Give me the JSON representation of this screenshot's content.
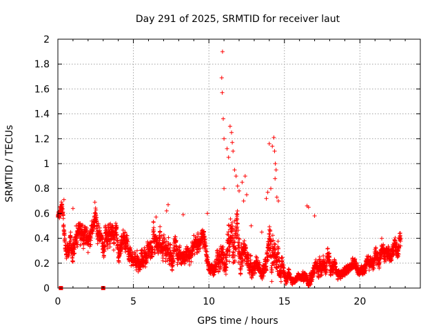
{
  "chart_data": {
    "type": "scatter",
    "title": "Day 291 of 2025, SRMTID for receiver laut",
    "xlabel": "GPS time / hours",
    "ylabel": "SRMTID / TECUs",
    "xlim": [
      0,
      24
    ],
    "ylim": [
      0,
      2
    ],
    "xticks": [
      0,
      5,
      10,
      15,
      20
    ],
    "xtick_labels": [
      "0",
      "5",
      "10",
      "15",
      "20"
    ],
    "yticks": [
      0,
      0.2,
      0.4,
      0.6,
      0.8,
      1,
      1.2,
      1.4,
      1.6,
      1.8,
      2
    ],
    "ytick_labels": [
      "0",
      "0.2",
      "0.4",
      "0.6",
      "0.8",
      "1",
      "1.2",
      "1.4",
      "1.6",
      "1.8",
      "2"
    ],
    "grid": true,
    "marker_color": "#ff0000",
    "series": [
      {
        "name": "SRMTID",
        "marker": "plus",
        "trend": {
          "x": [
            0.0,
            0.3,
            0.5,
            1.0,
            1.5,
            2.0,
            2.2,
            2.5,
            3.0,
            3.5,
            4.0,
            4.5,
            5.0,
            5.5,
            6.0,
            6.5,
            7.0,
            7.5,
            8.0,
            8.5,
            9.0,
            9.5,
            9.8,
            10.0,
            10.5,
            11.0,
            11.5,
            12.0,
            12.5,
            13.0,
            13.5,
            14.0,
            14.5,
            15.0,
            15.5,
            16.0,
            16.5,
            17.0,
            17.5,
            18.0,
            18.5,
            19.0,
            19.5,
            20.0,
            20.5,
            21.0,
            21.5,
            22.0,
            22.5,
            22.7
          ],
          "center": [
            0.58,
            0.62,
            0.38,
            0.35,
            0.4,
            0.33,
            0.42,
            0.55,
            0.3,
            0.45,
            0.32,
            0.38,
            0.22,
            0.24,
            0.3,
            0.38,
            0.36,
            0.32,
            0.28,
            0.26,
            0.3,
            0.45,
            0.3,
            0.14,
            0.2,
            0.26,
            0.4,
            0.32,
            0.22,
            0.18,
            0.14,
            0.3,
            0.28,
            0.12,
            0.07,
            0.08,
            0.1,
            0.14,
            0.22,
            0.18,
            0.12,
            0.12,
            0.18,
            0.14,
            0.16,
            0.26,
            0.3,
            0.26,
            0.34,
            0.38
          ],
          "spread": [
            0.04,
            0.06,
            0.08,
            0.12,
            0.14,
            0.12,
            0.1,
            0.1,
            0.1,
            0.12,
            0.1,
            0.1,
            0.08,
            0.09,
            0.11,
            0.12,
            0.12,
            0.1,
            0.1,
            0.1,
            0.1,
            0.1,
            0.1,
            0.06,
            0.08,
            0.15,
            0.2,
            0.18,
            0.1,
            0.08,
            0.06,
            0.2,
            0.18,
            0.06,
            0.04,
            0.04,
            0.06,
            0.08,
            0.1,
            0.08,
            0.05,
            0.05,
            0.07,
            0.06,
            0.06,
            0.08,
            0.09,
            0.08,
            0.09,
            0.1
          ]
        },
        "points_per_hour": 150,
        "outliers": [
          [
            10.9,
            1.9
          ],
          [
            10.85,
            1.69
          ],
          [
            10.88,
            1.57
          ],
          [
            10.95,
            1.36
          ],
          [
            11.0,
            1.2
          ],
          [
            11.2,
            1.12
          ],
          [
            11.3,
            1.05
          ],
          [
            11.4,
            1.3
          ],
          [
            11.5,
            1.25
          ],
          [
            11.55,
            1.17
          ],
          [
            11.6,
            1.1
          ],
          [
            11.7,
            0.95
          ],
          [
            11.8,
            0.9
          ],
          [
            11.9,
            0.82
          ],
          [
            12.0,
            0.78
          ],
          [
            11.0,
            0.8
          ],
          [
            12.2,
            0.85
          ],
          [
            12.4,
            0.9
          ],
          [
            12.5,
            0.75
          ],
          [
            12.3,
            0.7
          ],
          [
            14.0,
            1.16
          ],
          [
            14.2,
            1.14
          ],
          [
            14.3,
            1.21
          ],
          [
            14.35,
            1.1
          ],
          [
            14.4,
            1.0
          ],
          [
            14.45,
            0.95
          ],
          [
            14.38,
            0.88
          ],
          [
            13.9,
            0.77
          ],
          [
            14.1,
            0.8
          ],
          [
            14.5,
            0.73
          ],
          [
            13.8,
            0.72
          ],
          [
            14.6,
            0.7
          ],
          [
            16.5,
            0.66
          ],
          [
            16.6,
            0.65
          ],
          [
            17.0,
            0.58
          ],
          [
            8.3,
            0.59
          ],
          [
            7.3,
            0.67
          ],
          [
            7.2,
            0.62
          ],
          [
            6.5,
            0.57
          ],
          [
            2.45,
            0.69
          ],
          [
            0.4,
            0.71
          ],
          [
            1.0,
            0.64
          ],
          [
            9.9,
            0.6
          ],
          [
            12.8,
            0.5
          ],
          [
            13.5,
            0.45
          ]
        ],
        "square_markers": [
          [
            0.2,
            0.0
          ],
          [
            3.0,
            0.0
          ]
        ]
      }
    ]
  }
}
